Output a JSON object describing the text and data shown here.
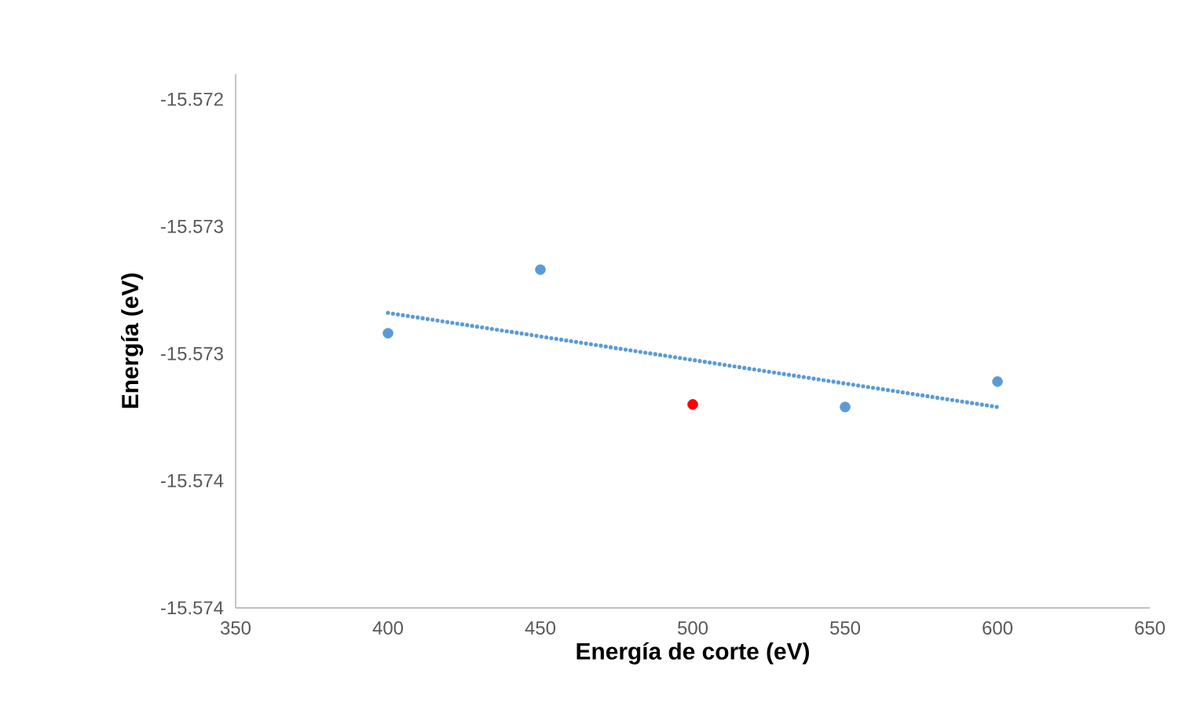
{
  "chart_data": {
    "type": "scatter",
    "xlabel": "Energía de corte (eV)",
    "ylabel": "Energía (eV)",
    "xlim": [
      350,
      650
    ],
    "xticks": [
      350,
      400,
      450,
      500,
      550,
      600,
      650
    ],
    "ylim": [
      -15.574,
      -15.5719
    ],
    "yticks": [
      {
        "value": -15.572,
        "label": "-15.572"
      },
      {
        "value": -15.5725,
        "label": "-15.573"
      },
      {
        "value": -15.573,
        "label": "-15.573"
      },
      {
        "value": -15.5735,
        "label": "-15.574"
      },
      {
        "value": -15.574,
        "label": "-15.574"
      }
    ],
    "grid": false,
    "series": [
      {
        "marker": "circle",
        "colors": [
          "#5b9bd5",
          "#5b9bd5",
          "#ff0000",
          "#5b9bd5",
          "#5b9bd5"
        ],
        "x": [
          400,
          450,
          500,
          550,
          600
        ],
        "values": [
          -15.57292,
          -15.57267,
          -15.5732,
          -15.57321,
          -15.57311
        ]
      },
      {
        "type": "line",
        "line_style": "dotted",
        "color": "#5b9bd5",
        "x": [
          400,
          600
        ],
        "values": [
          -15.57284,
          -15.57321
        ]
      }
    ]
  }
}
